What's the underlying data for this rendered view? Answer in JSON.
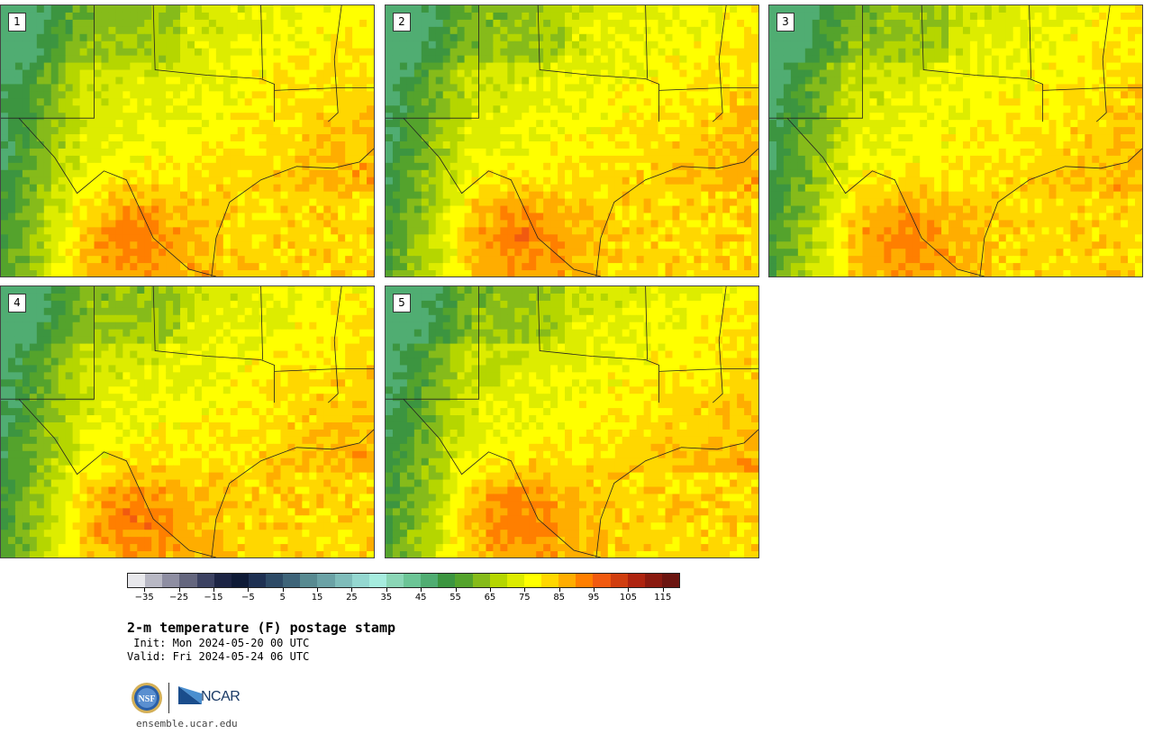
{
  "panels": [
    {
      "label": "1",
      "seed": 11
    },
    {
      "label": "2",
      "seed": 23
    },
    {
      "label": "3",
      "seed": 37
    },
    {
      "label": "4",
      "seed": 41
    },
    {
      "label": "5",
      "seed": 53
    }
  ],
  "colorbar": {
    "colors": [
      "#e8e8ec",
      "#b8b8c4",
      "#8e8ea2",
      "#64667e",
      "#3c4262",
      "#1c2444",
      "#0e1a36",
      "#1e3052",
      "#2d4a66",
      "#3e6479",
      "#588a91",
      "#6ba2a6",
      "#7fbcba",
      "#94d7d0",
      "#a6ecde",
      "#8bd6b6",
      "#6cc596",
      "#50ad72",
      "#3c9540",
      "#54a32c",
      "#86bb1a",
      "#b5d600",
      "#ddec00",
      "#ffff00",
      "#ffd700",
      "#ffad00",
      "#ff7f00",
      "#f15a10",
      "#d03e10",
      "#ae2410",
      "#8a1a10",
      "#6b1510"
    ],
    "tick_labels": [
      "−35",
      "−25",
      "−15",
      "−5",
      "5",
      "15",
      "25",
      "35",
      "45",
      "55",
      "65",
      "75",
      "85",
      "95",
      "105",
      "115"
    ]
  },
  "title": "2-m temperature (F) postage stamp",
  "init_line": " Init: Mon 2024-05-20 00 UTC",
  "valid_line": "Valid: Fri 2024-05-24 06 UTC",
  "logos": {
    "nsf": "NSF",
    "ncar": "NCAR"
  },
  "footer_url": "ensemble.ucar.edu"
}
